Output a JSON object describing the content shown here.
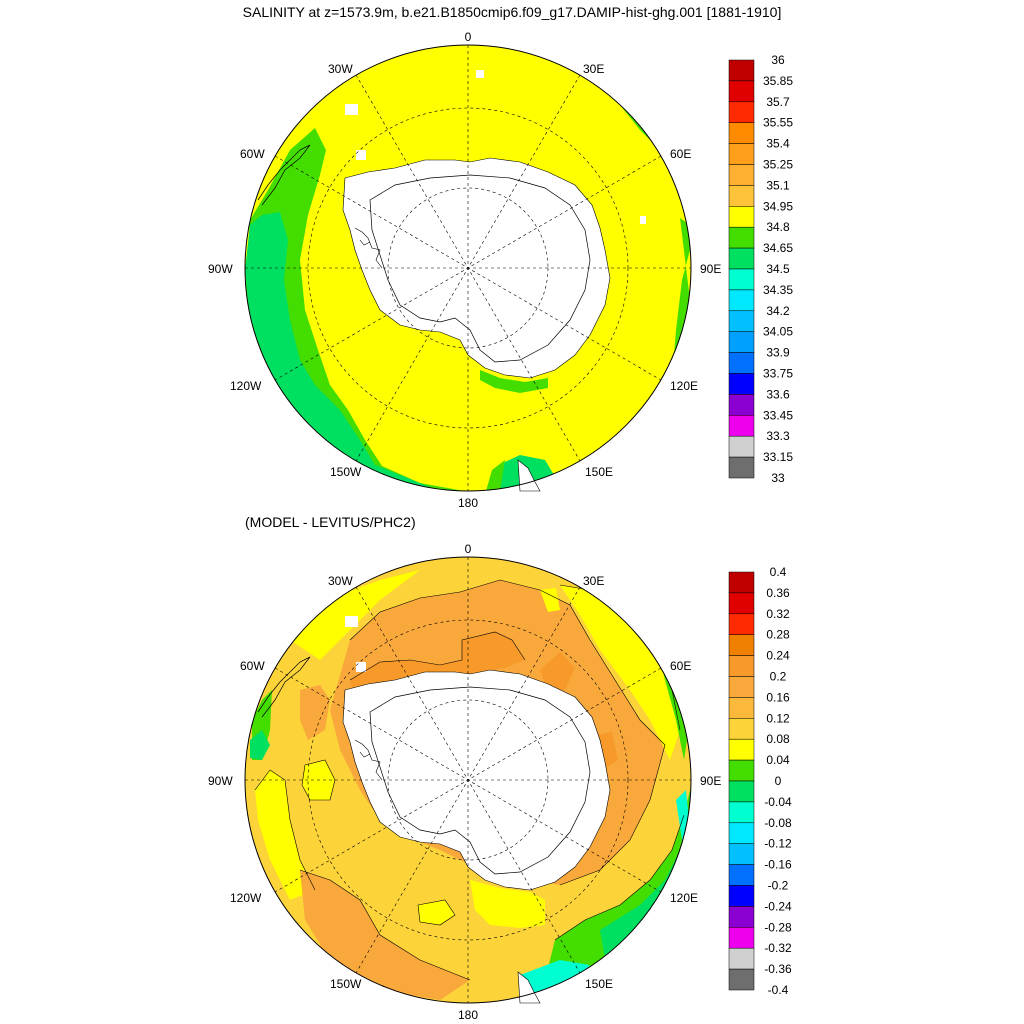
{
  "figure": {
    "title": "SALINITY at z=1573.9m, b.e21.B1850cmip6.f09_g17.DAMIP-hist-ghg.001 [1881-1910]",
    "subtitle": "(MODEL - LEVITUS/PHC2)"
  },
  "longitude_labels": [
    "0",
    "30E",
    "60E",
    "90E",
    "120E",
    "150E",
    "180",
    "150W",
    "120W",
    "90W",
    "60W",
    "30W"
  ],
  "colors": {
    "land": "#ffffff",
    "coast": "#000000",
    "grid": "#000000"
  },
  "panels": [
    {
      "id": "salinity",
      "colorbar": {
        "labels": [
          "36",
          "35.85",
          "35.7",
          "35.55",
          "35.4",
          "35.25",
          "35.1",
          "34.95",
          "34.8",
          "34.65",
          "34.5",
          "34.35",
          "34.2",
          "34.05",
          "33.9",
          "33.75",
          "33.6",
          "33.45",
          "33.3",
          "33.15",
          "33"
        ],
        "colors_top_to_bottom": [
          "#c00000",
          "#e00000",
          "#ff2a00",
          "#ff8c00",
          "#ff9f1a",
          "#ffb030",
          "#ffc33a",
          "#ffff00",
          "#44dd00",
          "#00e060",
          "#00ffd0",
          "#00e8ff",
          "#00c0ff",
          "#00a0ff",
          "#0070ff",
          "#0000ff",
          "#8a00d0",
          "#ee00ee",
          "#d0d0d0",
          "#6e6e6e"
        ]
      }
    },
    {
      "id": "difference",
      "colorbar": {
        "labels": [
          "0.4",
          "0.36",
          "0.32",
          "0.28",
          "0.24",
          "0.2",
          "0.16",
          "0.12",
          "0.08",
          "0.04",
          "0",
          "-0.04",
          "-0.08",
          "-0.12",
          "-0.16",
          "-0.2",
          "-0.24",
          "-0.28",
          "-0.32",
          "-0.36",
          "-0.4"
        ],
        "colors_top_to_bottom": [
          "#c00000",
          "#e00000",
          "#ff2a00",
          "#f08000",
          "#f79a2a",
          "#f9a83c",
          "#fbb83a",
          "#fdd33a",
          "#ffff00",
          "#44dd00",
          "#00e060",
          "#00ffd0",
          "#00e8ff",
          "#00c0ff",
          "#0070ff",
          "#0000ff",
          "#8a00d0",
          "#ee00ee",
          "#d0d0d0",
          "#6e6e6e"
        ]
      }
    }
  ]
}
